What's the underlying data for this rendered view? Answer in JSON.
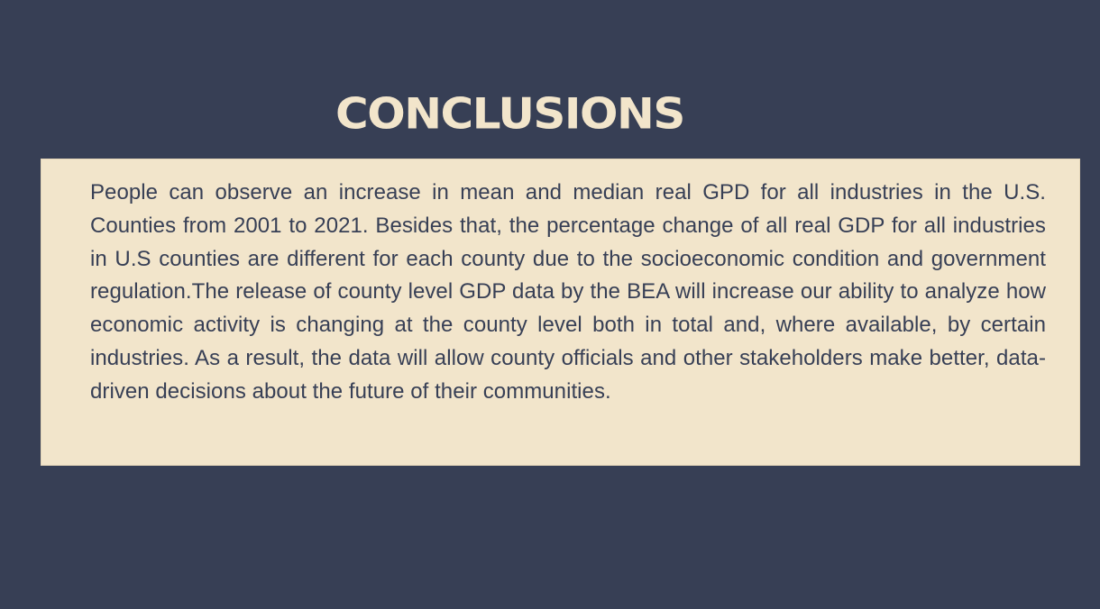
{
  "slide": {
    "title": "CONCLUSIONS",
    "body": "People can observe an increase in mean and median real GPD for all industries in the U.S. Counties from 2001 to 2021. Besides that, the percentage change of all real GDP for all industries in U.S counties are different for each county due to the socioeconomic condition and government regulation.The release of county level GDP data by the BEA will increase our ability to analyze how economic activity is changing at the county level both in total and, where available, by certain industries. As a result, the data will allow county officials and other stakeholders make better, data-driven decisions about the future of their communities."
  },
  "colors": {
    "background": "#373f55",
    "panel": "#f2e5cb",
    "title_text": "#f2e5cb",
    "body_text": "#373f55"
  }
}
